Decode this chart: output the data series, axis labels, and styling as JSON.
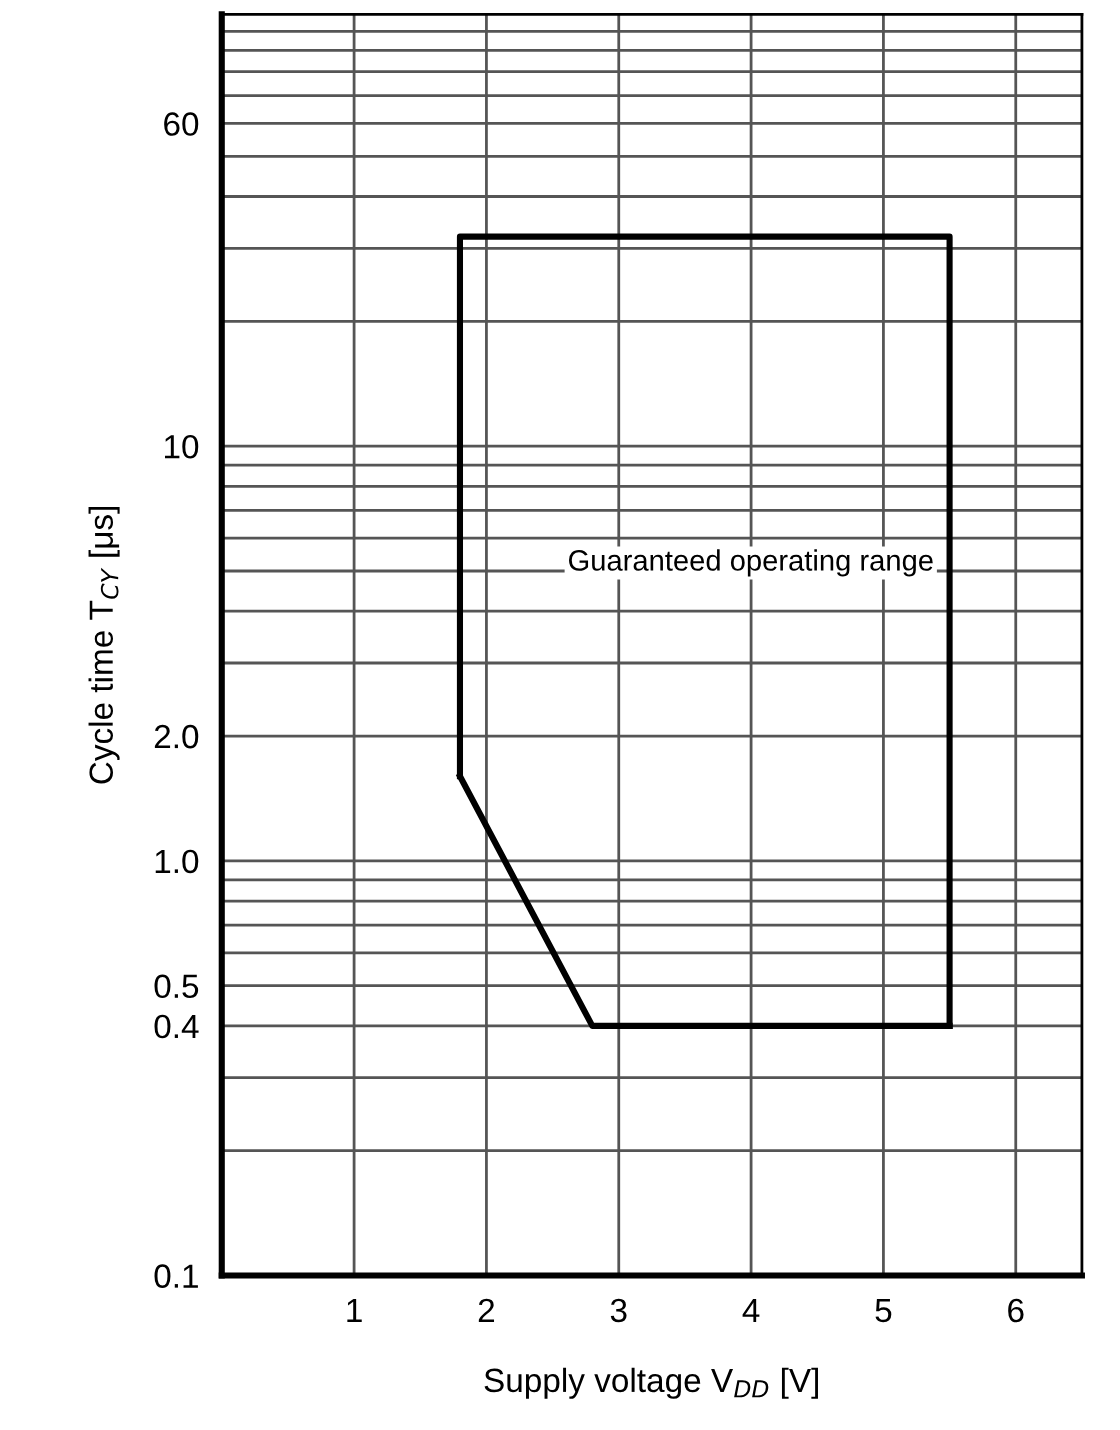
{
  "chart_data": {
    "type": "line",
    "xlabel": "Supply voltage V$_{DD}$ [V]",
    "ylabel": "Cycle time T$_{CY}$ [μs]",
    "series": [
      {
        "color": "#000000",
        "x": [
          1.8,
          1.8,
          5.5,
          5.5
        ],
        "values": [
          1.6,
          32,
          32,
          0.4
        ]
      },
      {
        "color": "#000000",
        "x": [
          1.8,
          2.8,
          5.5
        ],
        "values": [
          1.6,
          0.4,
          0.4
        ]
      }
    ],
    "xlim": [
      0,
      6.5
    ],
    "xticks": [
      1,
      2,
      3,
      4,
      5,
      6
    ],
    "ylim": [
      0.1,
      110
    ],
    "yticks": [
      {
        "value": 0.1,
        "label": "0.1"
      },
      0.4,
      0.5,
      {
        "value": 1,
        "label": "1.0"
      },
      {
        "value": 2,
        "label": "2.0"
      },
      10,
      60
    ],
    "log": "y",
    "grid": true,
    "marker": "none",
    "line_style": "solid",
    "annotations": [
      "Guaranteed operating range"
    ]
  }
}
